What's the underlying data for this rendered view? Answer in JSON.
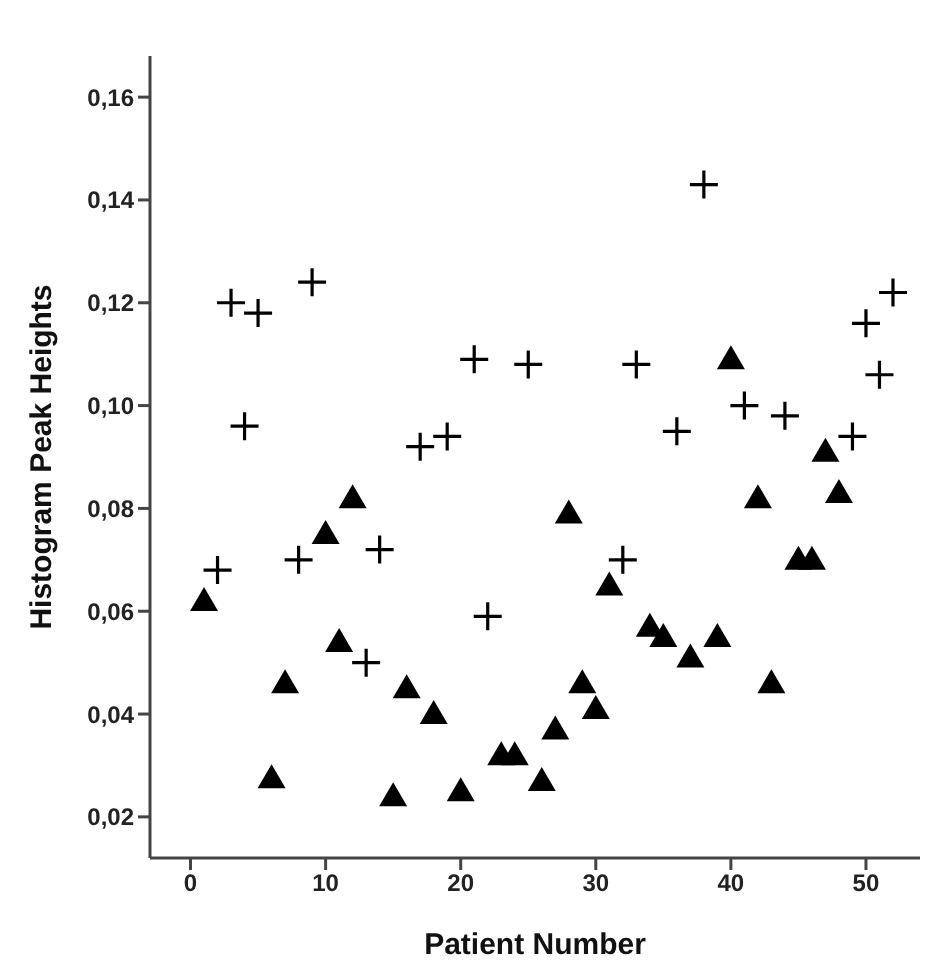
{
  "chart_data": {
    "type": "scatter",
    "xlabel": "Patient  Number",
    "ylabel": "Histogram  Peak  Heights",
    "xlim": [
      -3,
      54
    ],
    "xticks": [
      0,
      10,
      20,
      30,
      40,
      50
    ],
    "ylim": [
      0.012,
      0.168
    ],
    "yticks": [
      {
        "value": 0.02,
        "label": "0,02"
      },
      {
        "value": 0.04,
        "label": "0,04"
      },
      {
        "value": 0.06,
        "label": "0,06"
      },
      {
        "value": 0.08,
        "label": "0,08"
      },
      {
        "value": 0.1,
        "label": "0,10"
      },
      {
        "value": 0.12,
        "label": "0,12"
      },
      {
        "value": 0.14,
        "label": "0,14"
      },
      {
        "value": 0.16,
        "label": "0,16"
      }
    ],
    "grid": false,
    "legend": false,
    "series": [
      {
        "color": "#000000",
        "marker": "triangle",
        "x": [
          1,
          6,
          7,
          10,
          11,
          12,
          15,
          16,
          18,
          20,
          23,
          24,
          26,
          27,
          28,
          29,
          30,
          31,
          34,
          35,
          37,
          39,
          40,
          42,
          43,
          45,
          46,
          47,
          48
        ],
        "values": [
          0.062,
          0.0275,
          0.046,
          0.075,
          0.054,
          0.082,
          0.024,
          0.045,
          0.04,
          0.025,
          0.032,
          0.032,
          0.027,
          0.037,
          0.079,
          0.046,
          0.041,
          0.065,
          0.057,
          0.055,
          0.051,
          0.055,
          0.109,
          0.082,
          0.046,
          0.07,
          0.07,
          0.091,
          0.083
        ]
      },
      {
        "color": "#000000",
        "marker": "cross",
        "x": [
          2,
          3,
          4,
          5,
          8,
          9,
          13,
          14,
          17,
          19,
          21,
          22,
          25,
          32,
          33,
          36,
          38,
          41,
          44,
          49,
          50,
          51,
          52
        ],
        "values": [
          0.068,
          0.12,
          0.096,
          0.118,
          0.07,
          0.124,
          0.05,
          0.072,
          0.092,
          0.094,
          0.109,
          0.059,
          0.108,
          0.07,
          0.108,
          0.095,
          0.143,
          0.1,
          0.098,
          0.094,
          0.116,
          0.106,
          0.122
        ]
      }
    ]
  }
}
